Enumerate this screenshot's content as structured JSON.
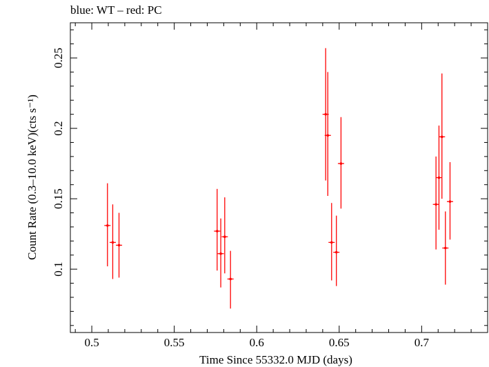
{
  "header": {
    "caption": "blue: WT – red: PC"
  },
  "chart_data": {
    "type": "scatter",
    "title": "",
    "xlabel": "Time Since 55332.0 MJD (days)",
    "ylabel": "Count Rate (0.3–10.0 keV)(cts s⁻¹)",
    "xlim": [
      0.487,
      0.74
    ],
    "ylim": [
      0.055,
      0.275
    ],
    "x_ticks": [
      0.5,
      0.55,
      0.6,
      0.65,
      0.7
    ],
    "x_tick_labels": [
      "0.5",
      "0.55",
      "0.6",
      "0.65",
      "0.7"
    ],
    "y_ticks": [
      0.1,
      0.15,
      0.2,
      0.25
    ],
    "y_tick_labels": [
      "0.1",
      "0.15",
      "0.2",
      "0.25"
    ],
    "grid": false,
    "colors": {
      "PC": "#ff0000",
      "frame": "#000000"
    },
    "series": [
      {
        "name": "PC",
        "color": "#ff0000",
        "points": [
          {
            "x": 0.5095,
            "y": 0.131,
            "ylo": 0.102,
            "yhi": 0.161
          },
          {
            "x": 0.5127,
            "y": 0.119,
            "ylo": 0.093,
            "yhi": 0.146
          },
          {
            "x": 0.5165,
            "y": 0.117,
            "ylo": 0.094,
            "yhi": 0.14
          },
          {
            "x": 0.576,
            "y": 0.127,
            "ylo": 0.099,
            "yhi": 0.157
          },
          {
            "x": 0.5782,
            "y": 0.111,
            "ylo": 0.087,
            "yhi": 0.136
          },
          {
            "x": 0.5806,
            "y": 0.123,
            "ylo": 0.097,
            "yhi": 0.151
          },
          {
            "x": 0.5841,
            "y": 0.093,
            "ylo": 0.072,
            "yhi": 0.113
          },
          {
            "x": 0.6418,
            "y": 0.21,
            "ylo": 0.163,
            "yhi": 0.257
          },
          {
            "x": 0.6431,
            "y": 0.195,
            "ylo": 0.152,
            "yhi": 0.24
          },
          {
            "x": 0.6454,
            "y": 0.119,
            "ylo": 0.092,
            "yhi": 0.147
          },
          {
            "x": 0.6483,
            "y": 0.112,
            "ylo": 0.088,
            "yhi": 0.138
          },
          {
            "x": 0.6511,
            "y": 0.175,
            "ylo": 0.143,
            "yhi": 0.208
          },
          {
            "x": 0.7087,
            "y": 0.146,
            "ylo": 0.114,
            "yhi": 0.18
          },
          {
            "x": 0.7105,
            "y": 0.165,
            "ylo": 0.128,
            "yhi": 0.202
          },
          {
            "x": 0.7123,
            "y": 0.194,
            "ylo": 0.15,
            "yhi": 0.239
          },
          {
            "x": 0.7144,
            "y": 0.115,
            "ylo": 0.089,
            "yhi": 0.141
          },
          {
            "x": 0.7172,
            "y": 0.148,
            "ylo": 0.121,
            "yhi": 0.176
          }
        ]
      }
    ]
  }
}
